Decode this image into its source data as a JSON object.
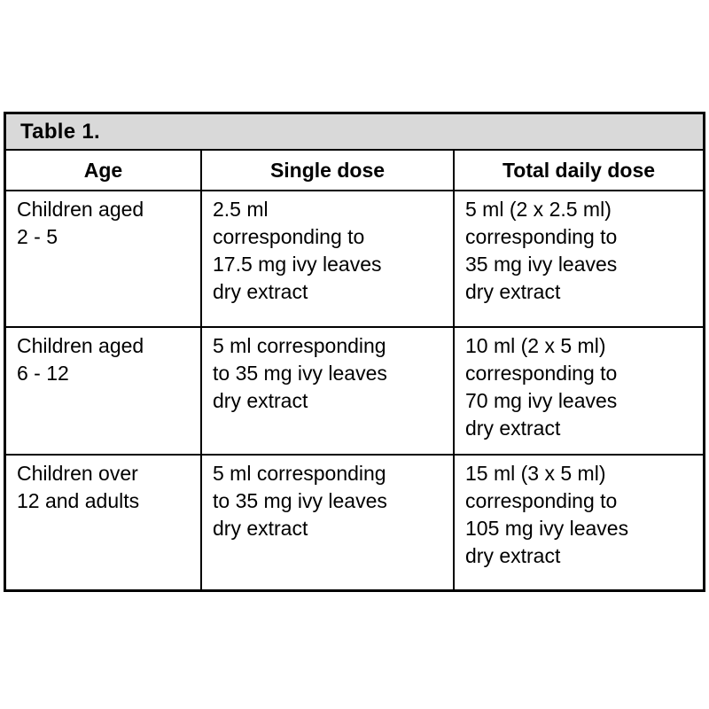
{
  "table": {
    "caption": "Table 1.",
    "columns": [
      "Age",
      "Single dose",
      "Total daily dose"
    ],
    "rows": [
      {
        "age": "Children aged\n2 - 5",
        "single_dose": "2.5 ml\ncorresponding to\n17.5 mg ivy leaves\ndry extract",
        "total_daily_dose": "5 ml (2 x 2.5 ml)\ncorresponding to\n35 mg ivy leaves\ndry extract"
      },
      {
        "age": "Children aged\n6 - 12",
        "single_dose": "5 ml corresponding\nto 35 mg ivy leaves\ndry extract",
        "total_daily_dose": "10 ml (2 x 5 ml)\ncorresponding to\n70 mg ivy leaves\ndry extract"
      },
      {
        "age": "Children over\n12 and adults",
        "single_dose": "5 ml corresponding\nto 35 mg ivy leaves\ndry extract",
        "total_daily_dose": "15 ml (3 x 5 ml)\ncorresponding to\n105 mg ivy leaves\ndry extract"
      }
    ],
    "colors": {
      "caption_background": "#d9d9d9",
      "border": "#000000",
      "background": "#ffffff",
      "text": "#000000"
    }
  }
}
